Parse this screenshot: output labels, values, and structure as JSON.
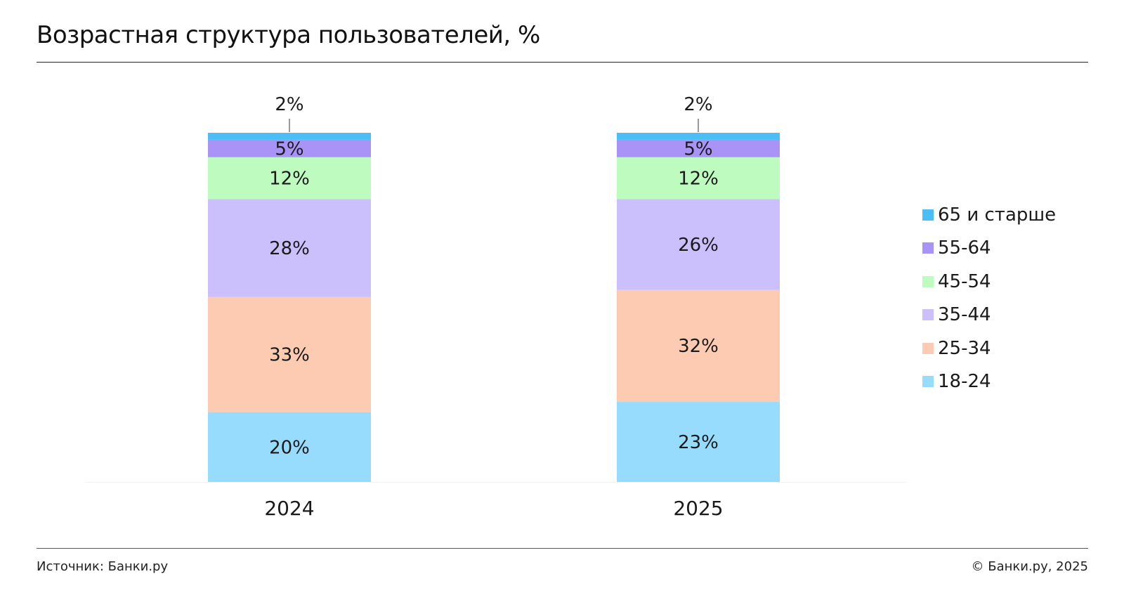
{
  "header": {
    "title": "Возрастная структура пользователей, %"
  },
  "footer": {
    "source": "Источник: Банки.ру",
    "copyright": "© Банки.ру, 2025"
  },
  "colors": {
    "65 и старше": "#4dbdf7",
    "55-64": "#a993f7",
    "45-54": "#bdfbbf",
    "35-44": "#cbbffc",
    "25-34": "#fdcbb2",
    "18-24": "#97dcfd"
  },
  "chart_data": {
    "type": "bar",
    "stacked": true,
    "categories": [
      "2024",
      "2025"
    ],
    "series": [
      {
        "name": "18-24",
        "values": [
          20,
          23
        ],
        "color": "#97dcfd"
      },
      {
        "name": "25-34",
        "values": [
          33,
          32
        ],
        "color": "#fdcbb2"
      },
      {
        "name": "35-44",
        "values": [
          28,
          26
        ],
        "color": "#cbbffc"
      },
      {
        "name": "45-54",
        "values": [
          12,
          12
        ],
        "color": "#bdfbbf"
      },
      {
        "name": "55-64",
        "values": [
          5,
          5
        ],
        "color": "#a993f7"
      },
      {
        "name": "65 и старше",
        "values": [
          2,
          2
        ],
        "color": "#4dbdf7"
      }
    ],
    "data_labels": [
      [
        "20%",
        "33%",
        "28%",
        "12%",
        "5%",
        "2%"
      ],
      [
        "23%",
        "32%",
        "26%",
        "12%",
        "5%",
        "2%"
      ]
    ],
    "legend": {
      "position": "right",
      "order": [
        "65 и старше",
        "55-64",
        "45-54",
        "35-44",
        "25-34",
        "18-24"
      ]
    },
    "ylim": [
      0,
      100
    ],
    "grid": false
  }
}
